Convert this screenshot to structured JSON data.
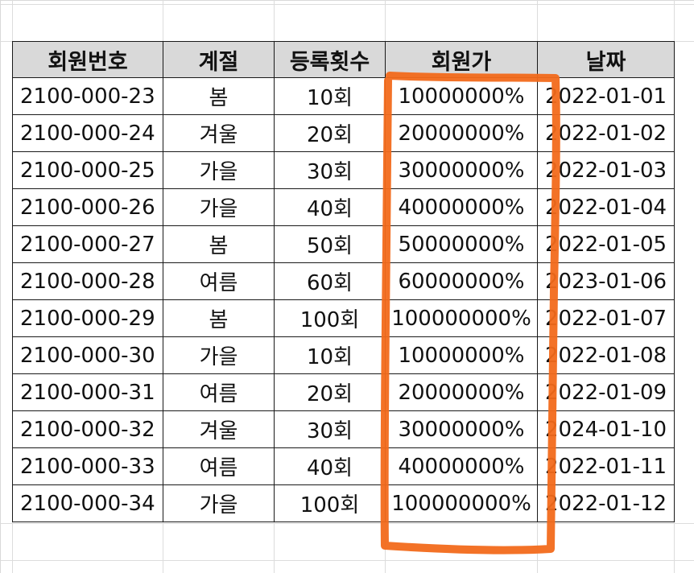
{
  "table": {
    "headers": [
      "회원번호",
      "계절",
      "등록횟수",
      "회원가",
      "날짜"
    ],
    "rows": [
      [
        "2100-000-23",
        "봄",
        "10회",
        "10000000%",
        "2022-01-01"
      ],
      [
        "2100-000-24",
        "겨울",
        "20회",
        "20000000%",
        "2022-01-02"
      ],
      [
        "2100-000-25",
        "가을",
        "30회",
        "30000000%",
        "2022-01-03"
      ],
      [
        "2100-000-26",
        "가을",
        "40회",
        "40000000%",
        "2022-01-04"
      ],
      [
        "2100-000-27",
        "봄",
        "50회",
        "50000000%",
        "2022-01-05"
      ],
      [
        "2100-000-28",
        "여름",
        "60회",
        "60000000%",
        "2023-01-06"
      ],
      [
        "2100-000-29",
        "봄",
        "100회",
        "100000000%",
        "2022-01-07"
      ],
      [
        "2100-000-30",
        "가을",
        "10회",
        "10000000%",
        "2022-01-08"
      ],
      [
        "2100-000-31",
        "여름",
        "20회",
        "20000000%",
        "2022-01-09"
      ],
      [
        "2100-000-32",
        "겨울",
        "30회",
        "30000000%",
        "2024-01-10"
      ],
      [
        "2100-000-33",
        "여름",
        "40회",
        "40000000%",
        "2022-01-11"
      ],
      [
        "2100-000-34",
        "가을",
        "100회",
        "100000000%",
        "2022-01-12"
      ]
    ]
  },
  "colors": {
    "header_fill": "#d9d9d9",
    "border": "#1a1a1a",
    "annotation_stroke": "#f26a1b"
  }
}
